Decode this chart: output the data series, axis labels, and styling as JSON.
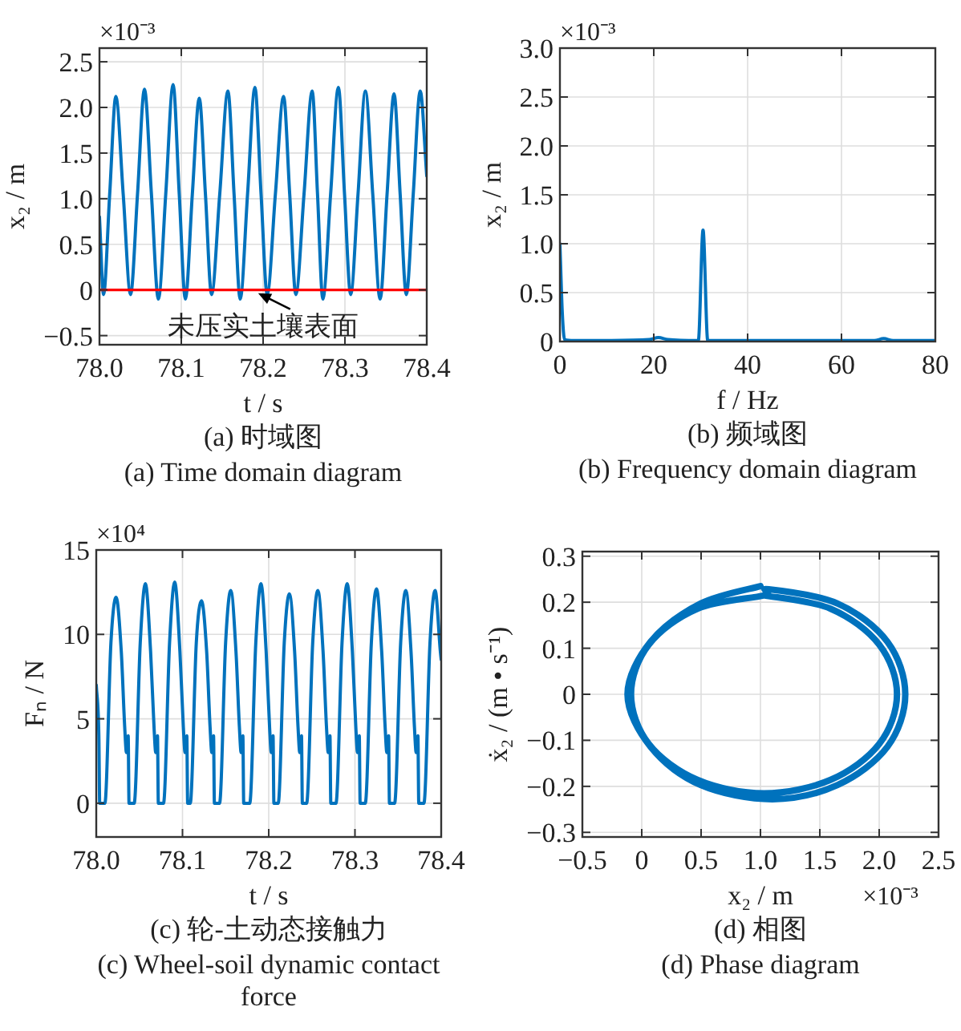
{
  "chart_data": [
    {
      "type": "line",
      "title": "(a) 时域图",
      "subtitle": "(a) Time domain diagram",
      "xlabel": "t / s",
      "ylabel": "x₂ / m",
      "grid": true,
      "xlim": [
        78.0,
        78.4
      ],
      "xticks": [
        {
          "value": 78.0,
          "label": "78.0"
        },
        78.1,
        78.2,
        78.3,
        78.4
      ],
      "ylim": [
        -0.6,
        2.65
      ],
      "yticks": [
        {
          "value": -0.5,
          "label": "−0.5"
        },
        0,
        0.5,
        {
          "value": 1,
          "label": "1.0"
        },
        1.5,
        {
          "value": 2,
          "label": "2.0"
        },
        2.5
      ],
      "ref_lines": [
        {
          "axis": "y",
          "value": 0,
          "color": "#ff0000"
        }
      ],
      "annotations": [
        "×10⁻³",
        {
          "text": "未压实土壤表面",
          "x": 78.19,
          "y": 0
        }
      ],
      "series": [
        {
          "color": "#0072bd",
          "x": [
            78.0,
            78.005,
            78.0125,
            78.02,
            78.029,
            78.038,
            78.0465,
            78.055,
            78.0635,
            78.072,
            78.081,
            78.09,
            78.0975,
            78.105,
            78.1135,
            78.122,
            78.1295,
            78.137,
            78.147,
            78.157,
            78.1645,
            78.172,
            78.181,
            78.19,
            78.1975,
            78.205,
            78.215,
            78.225,
            78.2325,
            78.24,
            78.25,
            78.26,
            78.2665,
            78.273,
            78.2825,
            78.292,
            78.2995,
            78.307,
            78.316,
            78.325,
            78.334,
            78.343,
            78.3515,
            78.36,
            78.3675,
            78.375,
            78.3835,
            78.392,
            78.4
          ],
          "values": [
            0.8,
            -0.05,
            1.05,
            2.12,
            1.05,
            -0.05,
            1.05,
            2.2,
            1.05,
            -0.1,
            1.05,
            2.25,
            1.05,
            -0.1,
            1.05,
            2.1,
            1.05,
            -0.05,
            1.05,
            2.18,
            1.05,
            -0.1,
            1.05,
            2.22,
            1.05,
            -0.05,
            1.05,
            2.12,
            1.05,
            -0.05,
            1.05,
            2.18,
            1.05,
            -0.1,
            1.05,
            2.22,
            1.05,
            -0.05,
            1.05,
            2.18,
            1.05,
            -0.1,
            1.05,
            2.15,
            1.05,
            -0.05,
            1.05,
            2.18,
            1.25
          ]
        }
      ]
    },
    {
      "type": "line",
      "title": "(b) 频域图",
      "subtitle": "(b) Frequency domain diagram",
      "xlabel": "f / Hz",
      "ylabel": "x₂ / m",
      "grid": true,
      "xlim": [
        0,
        80
      ],
      "xticks": [
        0,
        20,
        40,
        60,
        80
      ],
      "ylim": [
        0,
        3.0
      ],
      "yticks": [
        0,
        0.5,
        {
          "value": 1,
          "label": "1.0"
        },
        1.5,
        {
          "value": 2,
          "label": "2.0"
        },
        2.5,
        {
          "value": 3,
          "label": "3.0"
        }
      ],
      "annotations": [
        "×10⁻³"
      ],
      "series": [
        {
          "color": "#0072bd",
          "x": [
            0,
            0.5,
            1,
            3,
            10,
            19,
            21,
            23,
            29.5,
            30.5,
            31.5,
            40,
            60,
            67,
            69,
            71,
            80
          ],
          "values": [
            1.0,
            0.3,
            0.02,
            0.01,
            0.01,
            0.02,
            0.04,
            0.02,
            0.01,
            1.14,
            0.01,
            0.01,
            0.01,
            0.01,
            0.03,
            0.01,
            0.01
          ]
        }
      ]
    },
    {
      "type": "line",
      "title": "(c) 轮-土动态接触力",
      "subtitle": "(c) Wheel-soil dynamic contact force",
      "xlabel": "t / s",
      "ylabel": "Fₙ / N",
      "grid": true,
      "xlim": [
        78.0,
        78.4
      ],
      "xticks": [
        {
          "value": 78.0,
          "label": "78.0"
        },
        78.1,
        78.2,
        78.3,
        78.4
      ],
      "ylim": [
        -2,
        15
      ],
      "yticks": [
        0,
        5,
        10,
        15
      ],
      "annotations": [
        "×10⁴"
      ],
      "series": [
        {
          "color": "#0072bd",
          "x": [
            78.0,
            78.003,
            78.004,
            78.009,
            78.01,
            78.017,
            78.023,
            78.029,
            78.033,
            78.035,
            78.037,
            78.038,
            78.043,
            78.044,
            78.051,
            78.057,
            78.063,
            78.067,
            78.069,
            78.071,
            78.072,
            78.077,
            78.078,
            78.085,
            78.091,
            78.097,
            78.101,
            78.103,
            78.105,
            78.106,
            78.108,
            78.109,
            78.116,
            78.122,
            78.128,
            78.132,
            78.134,
            78.136,
            78.137,
            78.142,
            78.143,
            78.15,
            78.156,
            78.162,
            78.166,
            78.168,
            78.17,
            78.171,
            78.177,
            78.178,
            78.185,
            78.191,
            78.197,
            78.201,
            78.203,
            78.205,
            78.206,
            78.21,
            78.211,
            78.218,
            78.224,
            78.23,
            78.234,
            78.236,
            78.238,
            78.239,
            78.243,
            78.244,
            78.251,
            78.257,
            78.263,
            78.267,
            78.269,
            78.271,
            78.272,
            78.277,
            78.278,
            78.285,
            78.291,
            78.297,
            78.301,
            78.303,
            78.305,
            78.306,
            78.311,
            78.312,
            78.319,
            78.325,
            78.331,
            78.335,
            78.337,
            78.339,
            78.34,
            78.345,
            78.346,
            78.353,
            78.359,
            78.365,
            78.369,
            78.371,
            78.373,
            78.374,
            78.379,
            78.38,
            78.387,
            78.393,
            78.399,
            78.4
          ],
          "values": [
            7,
            4,
            0,
            0,
            0,
            9.5,
            12.2,
            9,
            4.5,
            3,
            4,
            0,
            0,
            0,
            9.5,
            13.0,
            9,
            4.5,
            3,
            4,
            0,
            0,
            0,
            9.5,
            13.1,
            9,
            4.5,
            3,
            4,
            0,
            0,
            0,
            9.5,
            12.0,
            9,
            4.5,
            3,
            4,
            0,
            0,
            0,
            9.5,
            12.6,
            9,
            4.5,
            3,
            4,
            0,
            0,
            0,
            9.5,
            13.0,
            9,
            4.5,
            3,
            4,
            0,
            0,
            0,
            9.5,
            12.4,
            9,
            4.5,
            3,
            4,
            0,
            0,
            0,
            9.5,
            12.6,
            9,
            4.5,
            3,
            4,
            0,
            0,
            0,
            9.5,
            13.0,
            9,
            4.5,
            3,
            4,
            0,
            0,
            0,
            9.5,
            12.7,
            9,
            4.5,
            3,
            4,
            0,
            0,
            0,
            9.5,
            12.6,
            9,
            4.5,
            3,
            4,
            0,
            0,
            0,
            9.5,
            12.6,
            9,
            8.5
          ]
        }
      ]
    },
    {
      "type": "line",
      "title": "(d) 相图",
      "subtitle": "(d) Phase diagram",
      "xlabel": "x₂ / m",
      "ylabel": "ẋ₂ / (m • s⁻¹)",
      "grid": true,
      "xlim": [
        -0.5,
        2.5
      ],
      "xticks": [
        {
          "value": -0.5,
          "label": "−0.5"
        },
        0,
        0.5,
        {
          "value": 1,
          "label": "1.0"
        },
        1.5,
        {
          "value": 2,
          "label": "2.0"
        },
        2.5
      ],
      "ylim": [
        -0.31,
        0.31
      ],
      "yticks": [
        {
          "value": -0.3,
          "label": "−0.3"
        },
        {
          "value": -0.2,
          "label": "−0.2"
        },
        {
          "value": -0.1,
          "label": "−0.1"
        },
        0,
        0.1,
        0.2,
        0.3
      ],
      "annotations": [
        "×10⁻³"
      ],
      "series": [
        {
          "color": "#0072bd",
          "x": [
            1.03,
            1.59,
            2.0,
            2.15,
            2.0,
            1.59,
            1.03,
            0.47,
            0.06,
            -0.09,
            0.06,
            0.47,
            1.03,
            1.07,
            1.65,
            2.07,
            2.22,
            2.07,
            1.65,
            1.1,
            0.495,
            0.074,
            -0.12,
            0.074,
            0.495,
            1.0
          ],
          "values": [
            0.215,
            0.186,
            0.108,
            0,
            -0.108,
            -0.186,
            -0.215,
            -0.186,
            -0.108,
            0,
            0.108,
            0.186,
            0.215,
            0.228,
            0.197,
            0.114,
            0,
            -0.114,
            -0.197,
            -0.228,
            -0.197,
            -0.114,
            0,
            0.114,
            0.197,
            0.235
          ]
        }
      ]
    }
  ]
}
